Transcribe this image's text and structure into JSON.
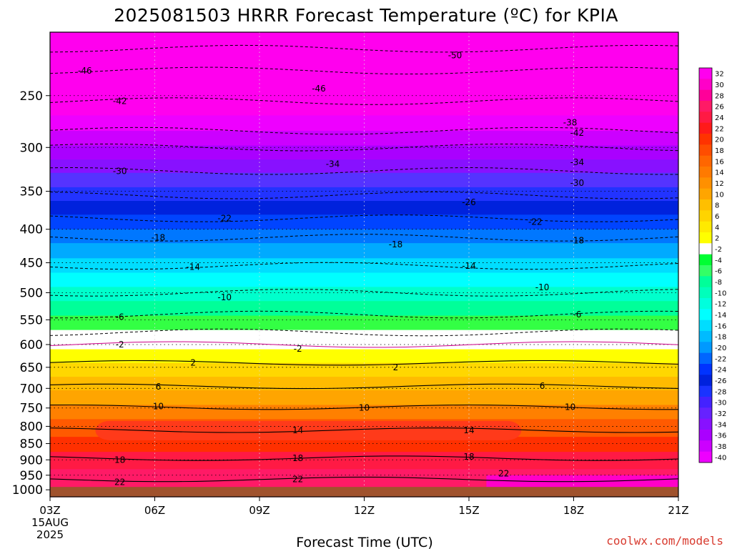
{
  "chart_data": {
    "type": "heatmap",
    "title": "2025081503 HRRR Forecast Temperature (ºC) for KPIA",
    "xlabel": "Forecast Time (UTC)",
    "ylabel": "",
    "x_ticks": [
      "03Z",
      "06Z",
      "09Z",
      "12Z",
      "15Z",
      "18Z",
      "21Z"
    ],
    "x_start_date": [
      "15AUG",
      "2025"
    ],
    "y_ticks": [
      250,
      300,
      350,
      400,
      450,
      500,
      550,
      600,
      650,
      700,
      750,
      800,
      850,
      900,
      950,
      1000
    ],
    "y_scale": "log-pressure (reversed)",
    "ylim": [
      200,
      1025
    ],
    "xlim_hours_utc": [
      3,
      21
    ],
    "grid": true,
    "colorbar_ticks": [
      32,
      30,
      28,
      26,
      24,
      22,
      20,
      18,
      16,
      14,
      12,
      10,
      8,
      6,
      4,
      2,
      -2,
      -4,
      -6,
      -8,
      -10,
      -12,
      -14,
      -16,
      -18,
      -20,
      -22,
      -24,
      -26,
      -28,
      -30,
      -32,
      -34,
      -36,
      -38,
      -40
    ],
    "colorbar_colors": [
      "#ff00ee",
      "#ff00c8",
      "#ff0099",
      "#ff1a66",
      "#ff1a44",
      "#ff1a1a",
      "#ff3300",
      "#ff4d00",
      "#ff6600",
      "#ff7a00",
      "#ff9000",
      "#ffa500",
      "#ffbf00",
      "#ffd400",
      "#ffea00",
      "#ffff00",
      "#ffffff",
      "#00ff33",
      "#33ff66",
      "#00ff99",
      "#00ffbb",
      "#00ffdd",
      "#00ffff",
      "#00ddff",
      "#00bbff",
      "#0099ff",
      "#0066ff",
      "#0033ff",
      "#0022dd",
      "#1a33ff",
      "#4422ff",
      "#6622ff",
      "#8811ff",
      "#aa00ff",
      "#cc00ff",
      "#ee00ff"
    ],
    "contour_labels": [
      {
        "value": "-50",
        "hour": 14.6,
        "pressure": 217
      },
      {
        "value": "-46",
        "hour": 4.0,
        "pressure": 229
      },
      {
        "value": "-46",
        "hour": 10.7,
        "pressure": 244
      },
      {
        "value": "-42",
        "hour": 5.0,
        "pressure": 255
      },
      {
        "value": "-42",
        "hour": 18.1,
        "pressure": 285
      },
      {
        "value": "-38",
        "hour": 17.9,
        "pressure": 275
      },
      {
        "value": "-34",
        "hour": 11.1,
        "pressure": 318
      },
      {
        "value": "-34",
        "hour": 18.1,
        "pressure": 316
      },
      {
        "value": "-30",
        "hour": 5.0,
        "pressure": 326
      },
      {
        "value": "-30",
        "hour": 18.1,
        "pressure": 340
      },
      {
        "value": "-26",
        "hour": 15.0,
        "pressure": 364
      },
      {
        "value": "-22",
        "hour": 8.0,
        "pressure": 385
      },
      {
        "value": "-22",
        "hour": 16.9,
        "pressure": 390
      },
      {
        "value": "-18",
        "hour": 6.1,
        "pressure": 412
      },
      {
        "value": "-18",
        "hour": 12.9,
        "pressure": 422
      },
      {
        "value": "-18",
        "hour": 18.1,
        "pressure": 416
      },
      {
        "value": "-14",
        "hour": 7.1,
        "pressure": 457
      },
      {
        "value": "-14",
        "hour": 15.0,
        "pressure": 455
      },
      {
        "value": "-10",
        "hour": 8.0,
        "pressure": 508
      },
      {
        "value": "-10",
        "hour": 17.1,
        "pressure": 491
      },
      {
        "value": "-6",
        "hour": 5.0,
        "pressure": 545
      },
      {
        "value": "-6",
        "hour": 18.1,
        "pressure": 540
      },
      {
        "value": "-2",
        "hour": 5.0,
        "pressure": 600
      },
      {
        "value": "-2",
        "hour": 10.1,
        "pressure": 609
      },
      {
        "value": "2",
        "hour": 7.1,
        "pressure": 640
      },
      {
        "value": "2",
        "hour": 12.9,
        "pressure": 650
      },
      {
        "value": "6",
        "hour": 6.1,
        "pressure": 696
      },
      {
        "value": "6",
        "hour": 17.1,
        "pressure": 694
      },
      {
        "value": "10",
        "hour": 6.1,
        "pressure": 746
      },
      {
        "value": "10",
        "hour": 12.0,
        "pressure": 750
      },
      {
        "value": "10",
        "hour": 17.9,
        "pressure": 748
      },
      {
        "value": "14",
        "hour": 10.1,
        "pressure": 811
      },
      {
        "value": "14",
        "hour": 15.0,
        "pressure": 811
      },
      {
        "value": "18",
        "hour": 5.0,
        "pressure": 900
      },
      {
        "value": "18",
        "hour": 10.1,
        "pressure": 895
      },
      {
        "value": "18",
        "hour": 15.0,
        "pressure": 890
      },
      {
        "value": "22",
        "hour": 5.0,
        "pressure": 974
      },
      {
        "value": "22",
        "hour": 10.1,
        "pressure": 964
      },
      {
        "value": "22",
        "hour": 16.0,
        "pressure": 945
      }
    ]
  },
  "credit": "coolwx.com/models",
  "colors": {
    "ground": "#a0522d",
    "cold_dash": "#000000",
    "warm_line": "#000000"
  }
}
